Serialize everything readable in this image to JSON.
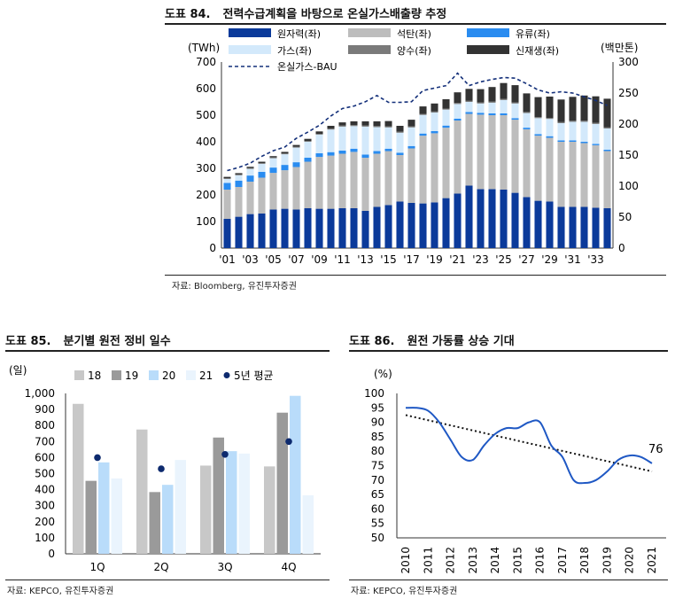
{
  "figures": [
    {
      "number": "도표 84.",
      "title": "전력수급계획을 바탕으로 온실가스배출량 추정",
      "source": "자료: Bloomberg, 유진투자증권"
    },
    {
      "number": "도표 85.",
      "title": "분기별 원전 정비 일수",
      "source": "자료: KEPCO, 유진투자증권"
    },
    {
      "number": "도표 86.",
      "title": "원전 가동률 상승 기대",
      "source": "자료: KEPCO, 유진투자증권"
    }
  ],
  "chart_data": [
    {
      "type": "bar",
      "stacked": true,
      "left_unit": "(TWh)",
      "right_unit": "(백만톤)",
      "ylim": [
        0,
        700
      ],
      "y2lim": [
        0,
        300
      ],
      "yticks": [
        0,
        100,
        200,
        300,
        400,
        500,
        600,
        700
      ],
      "y2ticks": [
        0,
        50,
        100,
        150,
        200,
        250,
        300
      ],
      "x": [
        2001,
        2002,
        2003,
        2004,
        2005,
        2006,
        2007,
        2008,
        2009,
        2010,
        2011,
        2012,
        2013,
        2014,
        2015,
        2016,
        2017,
        2018,
        2019,
        2020,
        2021,
        2022,
        2023,
        2024,
        2025,
        2026,
        2027,
        2028,
        2029,
        2030,
        2031,
        2032,
        2033,
        2034
      ],
      "xtick_labels": [
        "'01",
        "'03",
        "'05",
        "'07",
        "'09",
        "'11",
        "'13",
        "'15",
        "'17",
        "'19",
        "'21",
        "'23",
        "'25",
        "'27",
        "'29",
        "'31",
        "'33"
      ],
      "series": [
        {
          "name": "원자력(좌)",
          "color": "#0b3a9a",
          "values": [
            110,
            118,
            128,
            130,
            145,
            148,
            145,
            150,
            148,
            148,
            150,
            150,
            140,
            155,
            162,
            175,
            170,
            168,
            172,
            188,
            205,
            235,
            222,
            222,
            220,
            208,
            192,
            178,
            175,
            155,
            155,
            155,
            152,
            150
          ]
        },
        {
          "name": "석탄(좌)",
          "color": "#bdbdbd",
          "values": [
            110,
            112,
            122,
            135,
            138,
            145,
            160,
            175,
            195,
            200,
            205,
            212,
            200,
            200,
            203,
            175,
            205,
            255,
            260,
            265,
            275,
            270,
            280,
            278,
            280,
            275,
            255,
            245,
            240,
            245,
            245,
            240,
            235,
            215
          ]
        },
        {
          "name": "유류(좌)",
          "color": "#2a8cf0",
          "values": [
            25,
            24,
            23,
            22,
            20,
            20,
            18,
            15,
            14,
            13,
            12,
            12,
            12,
            10,
            9,
            9,
            9,
            8,
            8,
            8,
            7,
            7,
            7,
            7,
            7,
            6,
            6,
            6,
            6,
            5,
            5,
            5,
            5,
            5
          ]
        },
        {
          "name": "가스(좌)",
          "color": "#d3e9fb",
          "values": [
            15,
            20,
            25,
            30,
            35,
            40,
            55,
            60,
            70,
            85,
            90,
            85,
            105,
            90,
            80,
            75,
            70,
            70,
            70,
            60,
            55,
            38,
            35,
            40,
            50,
            55,
            55,
            60,
            65,
            65,
            70,
            75,
            75,
            80
          ]
        },
        {
          "name": "양수(좌)",
          "color": "#7a7a7a",
          "values": [
            3,
            3,
            3,
            3,
            3,
            3,
            3,
            3,
            3,
            4,
            4,
            4,
            4,
            4,
            4,
            4,
            4,
            4,
            4,
            4,
            4,
            4,
            4,
            4,
            4,
            4,
            4,
            4,
            4,
            4,
            4,
            4,
            4,
            4
          ]
        },
        {
          "name": "신재생(좌)",
          "color": "#333333",
          "values": [
            5,
            5,
            5,
            5,
            5,
            6,
            7,
            8,
            9,
            10,
            12,
            14,
            16,
            18,
            20,
            22,
            25,
            28,
            30,
            35,
            40,
            45,
            50,
            55,
            60,
            65,
            70,
            75,
            80,
            85,
            90,
            95,
            100,
            108
          ]
        }
      ],
      "line_series": {
        "name": "온실가스-BAU",
        "color": "#14307a",
        "axis": "right",
        "values": [
          125,
          130,
          137,
          148,
          157,
          163,
          177,
          187,
          198,
          213,
          225,
          229,
          236,
          246,
          235,
          235,
          236,
          254,
          258,
          262,
          282,
          262,
          268,
          272,
          275,
          274,
          265,
          255,
          250,
          252,
          250,
          244,
          238,
          230
        ]
      }
    },
    {
      "type": "bar",
      "unit": "(일)",
      "ylim": [
        0,
        1000
      ],
      "yticks": [
        0,
        100,
        200,
        300,
        400,
        500,
        600,
        700,
        800,
        900,
        1000
      ],
      "ytick_labels": [
        "0",
        "100",
        "200",
        "300",
        "400",
        "500",
        "600",
        "700",
        "800",
        "900",
        "1,000"
      ],
      "categories": [
        "1Q",
        "2Q",
        "3Q",
        "4Q"
      ],
      "series": [
        {
          "name": "18",
          "color": "#c8c8c8",
          "values": [
            935,
            775,
            550,
            545
          ]
        },
        {
          "name": "19",
          "color": "#9a9a9a",
          "values": [
            455,
            385,
            725,
            880
          ]
        },
        {
          "name": "20",
          "color": "#b9dcfa",
          "values": [
            570,
            430,
            640,
            985
          ]
        },
        {
          "name": "21",
          "color": "#eaf4fd",
          "values": [
            470,
            585,
            625,
            365
          ]
        }
      ],
      "markers": {
        "name": "5년 평균",
        "color": "#0d2a6e",
        "values": [
          600,
          530,
          620,
          700
        ]
      }
    },
    {
      "type": "line",
      "unit": "(%)",
      "ylim": [
        50,
        100
      ],
      "yticks": [
        50,
        55,
        60,
        65,
        70,
        75,
        80,
        85,
        90,
        95,
        100
      ],
      "x": [
        2010,
        2011,
        2012,
        2013,
        2014,
        2015,
        2016,
        2017,
        2018,
        2019,
        2020,
        2021
      ],
      "points_x": [
        2010,
        2010.5,
        2011,
        2011.5,
        2012,
        2012.5,
        2013,
        2013.5,
        2014,
        2014.5,
        2015,
        2015.5,
        2016,
        2016.5,
        2017,
        2017.5,
        2018,
        2018.5,
        2019,
        2019.5,
        2020,
        2020.5,
        2021
      ],
      "points_y": [
        95,
        95,
        94,
        90,
        84,
        78,
        77,
        82,
        86,
        88,
        88,
        90,
        90,
        82,
        78,
        70,
        69,
        70,
        73,
        77,
        78.5,
        78,
        75.8
      ],
      "trend": {
        "from": [
          2010,
          92.5
        ],
        "to": [
          2021,
          73
        ]
      },
      "line_color": "#1f58c4",
      "trend_color": "#111111",
      "end_label": "76"
    }
  ]
}
